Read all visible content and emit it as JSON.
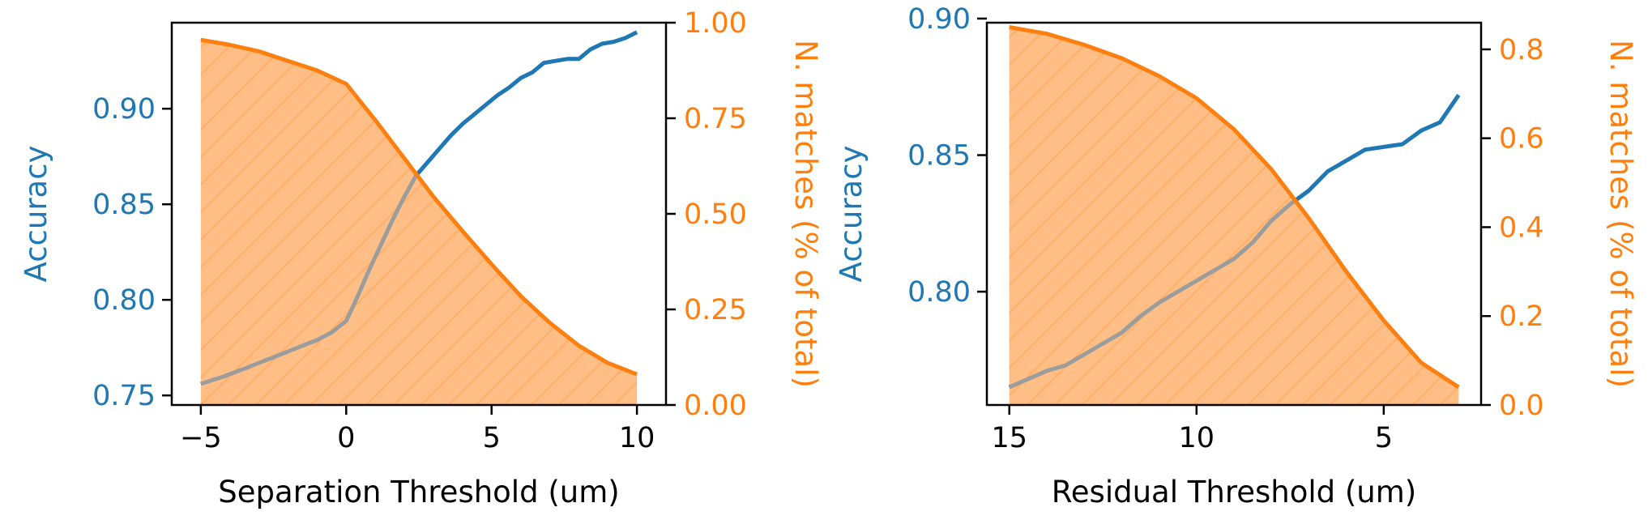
{
  "colors": {
    "accuracy": "#1f77b4",
    "matches": "#ff7f0e",
    "fill": "#ffbe86",
    "hatch": "#ff9d4a",
    "axis": "#000000"
  },
  "chart_data": [
    {
      "type": "line",
      "xlabel": "Separation Threshold (um)",
      "ylabel_left": "Accuracy",
      "ylabel_right": "N. matches (% of total)",
      "x_range": [
        -6,
        11
      ],
      "x_ticks": [
        -5,
        0,
        5,
        10
      ],
      "x_tick_labels": [
        "−5",
        "0",
        "5",
        "10"
      ],
      "x_reversed": false,
      "yleft_range": [
        0.745,
        0.945
      ],
      "yleft_ticks": [
        0.75,
        0.8,
        0.85,
        0.9
      ],
      "yleft_tick_labels": [
        "0.75",
        "0.80",
        "0.85",
        "0.90"
      ],
      "yright_range": [
        0.0,
        1.0
      ],
      "yright_ticks": [
        0.0,
        0.25,
        0.5,
        0.75,
        1.0
      ],
      "yright_tick_labels": [
        "0.00",
        "0.25",
        "0.50",
        "0.75",
        "1.00"
      ],
      "accuracy": {
        "x": [
          -5,
          -4.2,
          -3.5,
          -3.0,
          -2.5,
          -2.0,
          -1.5,
          -1.0,
          -0.5,
          0.0,
          0.4,
          0.8,
          1.2,
          1.6,
          2.0,
          2.4,
          2.8,
          3.2,
          3.6,
          4.0,
          4.4,
          4.8,
          5.2,
          5.6,
          6.0,
          6.4,
          6.8,
          7.2,
          7.6,
          8.0,
          8.4,
          8.8,
          9.2,
          9.6,
          10.0
        ],
        "values": [
          0.756,
          0.76,
          0.764,
          0.767,
          0.77,
          0.773,
          0.776,
          0.779,
          0.783,
          0.789,
          0.802,
          0.816,
          0.829,
          0.842,
          0.854,
          0.865,
          0.872,
          0.879,
          0.886,
          0.892,
          0.897,
          0.902,
          0.907,
          0.911,
          0.916,
          0.919,
          0.924,
          0.925,
          0.926,
          0.926,
          0.931,
          0.934,
          0.935,
          0.937,
          0.94
        ]
      },
      "matches": {
        "x": [
          -5,
          -4,
          -3,
          -2,
          -1,
          0,
          1,
          2,
          3,
          4,
          5,
          6,
          7,
          8,
          9,
          10
        ],
        "values": [
          0.955,
          0.942,
          0.925,
          0.9,
          0.875,
          0.84,
          0.745,
          0.645,
          0.545,
          0.455,
          0.368,
          0.285,
          0.215,
          0.155,
          0.11,
          0.08
        ]
      }
    },
    {
      "type": "line",
      "xlabel": "Residual Threshold (um)",
      "ylabel_left": "Accuracy",
      "ylabel_right": "N. matches (% of total)",
      "x_range": [
        2.4,
        15.6
      ],
      "x_ticks": [
        15,
        10,
        5
      ],
      "x_tick_labels": [
        "15",
        "10",
        "5"
      ],
      "x_reversed": true,
      "yleft_range": [
        0.7585,
        0.8985
      ],
      "yleft_ticks": [
        0.8,
        0.85,
        0.9
      ],
      "yleft_tick_labels": [
        "0.80",
        "0.85",
        "0.90"
      ],
      "yright_range": [
        0.0,
        0.86
      ],
      "yright_ticks": [
        0.0,
        0.2,
        0.4,
        0.6,
        0.8
      ],
      "yright_tick_labels": [
        "0.0",
        "0.2",
        "0.4",
        "0.6",
        "0.8"
      ],
      "accuracy": {
        "x": [
          15,
          14,
          13.5,
          13,
          12.5,
          12,
          11.5,
          11,
          10.5,
          10,
          9.5,
          9,
          8.5,
          8,
          7.5,
          7,
          6.5,
          6,
          5.5,
          5,
          4.5,
          4,
          3.5,
          3
        ],
        "values": [
          0.765,
          0.771,
          0.773,
          0.777,
          0.781,
          0.785,
          0.791,
          0.796,
          0.8,
          0.804,
          0.808,
          0.812,
          0.818,
          0.826,
          0.832,
          0.837,
          0.844,
          0.848,
          0.852,
          0.853,
          0.854,
          0.859,
          0.862,
          0.872
        ]
      },
      "matches": {
        "x": [
          15,
          14,
          13,
          12,
          11,
          10,
          9,
          8,
          7,
          6,
          5,
          4,
          3
        ],
        "values": [
          0.85,
          0.835,
          0.81,
          0.78,
          0.74,
          0.69,
          0.62,
          0.53,
          0.42,
          0.3,
          0.19,
          0.095,
          0.04
        ]
      }
    }
  ]
}
